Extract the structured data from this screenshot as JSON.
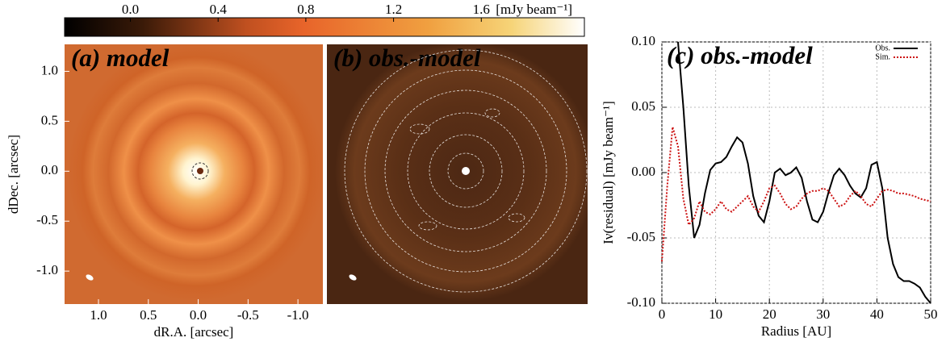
{
  "chart_data": [
    {
      "type": "image",
      "title": "(a) model",
      "xlabel": "dR.A. [arcsec]",
      "ylabel": "dDec. [arcsec]",
      "xlim": [
        1.34,
        -1.25
      ],
      "ylim": [
        -1.33,
        1.27
      ],
      "xticks": [
        {
          "value": 1.0,
          "label": "1.0"
        },
        0.5,
        {
          "value": 0.0,
          "label": "0.0"
        },
        -0.5,
        {
          "value": -1.0,
          "label": "-1.0"
        }
      ],
      "yticks": [
        {
          "value": 1.0,
          "label": "1.0"
        },
        0.5,
        {
          "value": 0.0,
          "label": "0.0"
        },
        -0.5,
        {
          "value": -1.0,
          "label": "-1.0"
        }
      ],
      "colorbar": {
        "lim": [
          -0.3,
          2.07
        ],
        "ticks": [
          {
            "value": 0.0,
            "label": "0.0"
          },
          0.4,
          0.8,
          1.2,
          1.6
        ],
        "label": "[mJy beam⁻¹]"
      }
    },
    {
      "type": "image",
      "title": "(b) obs.-model",
      "xlim": [
        1.34,
        -1.25
      ],
      "ylim": [
        -1.33,
        1.27
      ]
    },
    {
      "type": "line",
      "title": "(c) obs.-model",
      "xlabel": "Radius [AU]",
      "ylabel": "Iν(residual) [mJy beam⁻¹]",
      "x": [
        0,
        1,
        2,
        3,
        4,
        5,
        6,
        7,
        8,
        9,
        10,
        11,
        12,
        13,
        14,
        15,
        16,
        17,
        18,
        19,
        20,
        21,
        22,
        23,
        24,
        25,
        26,
        27,
        28,
        29,
        30,
        31,
        32,
        33,
        34,
        35,
        36,
        37,
        38,
        39,
        40,
        41,
        42,
        43,
        44,
        45,
        46,
        47,
        48,
        49,
        50
      ],
      "xlim": [
        0,
        50
      ],
      "ylim": [
        -0.1,
        0.1
      ],
      "xticks": [
        0,
        10,
        20,
        30,
        40,
        50
      ],
      "yticks": [
        {
          "value": 0.1,
          "label": "0.10"
        },
        0.05,
        {
          "value": 0.0,
          "label": "0.00"
        },
        -0.05,
        {
          "value": -0.1,
          "label": "-0.10"
        }
      ],
      "grid": true,
      "legend": "upper right",
      "series": [
        {
          "name": "Obs.",
          "color": "#000000",
          "style": "solid",
          "values": [
            null,
            null,
            null,
            0.1,
            0.05,
            -0.01,
            -0.05,
            -0.04,
            -0.016,
            0.002,
            0.007,
            0.008,
            0.012,
            0.02,
            0.027,
            0.023,
            0.007,
            -0.018,
            -0.033,
            -0.038,
            -0.022,
            0.0,
            0.003,
            -0.002,
            0.0,
            0.004,
            -0.004,
            -0.022,
            -0.036,
            -0.038,
            -0.03,
            -0.015,
            -0.002,
            0.003,
            -0.002,
            -0.01,
            -0.016,
            -0.019,
            -0.012,
            0.006,
            0.008,
            -0.012,
            -0.05,
            -0.07,
            -0.08,
            -0.083,
            -0.083,
            -0.085,
            -0.088,
            -0.095,
            -0.1
          ]
        },
        {
          "name": "Sim.",
          "color": "#cc1111",
          "style": "dotted",
          "values": [
            -0.068,
            -0.01,
            0.035,
            0.02,
            -0.02,
            -0.04,
            -0.035,
            -0.022,
            -0.03,
            -0.032,
            -0.028,
            -0.022,
            -0.028,
            -0.03,
            -0.026,
            -0.022,
            -0.018,
            -0.026,
            -0.03,
            -0.022,
            -0.012,
            -0.01,
            -0.016,
            -0.024,
            -0.028,
            -0.026,
            -0.02,
            -0.016,
            -0.014,
            -0.014,
            -0.012,
            -0.014,
            -0.02,
            -0.026,
            -0.024,
            -0.018,
            -0.014,
            -0.018,
            -0.024,
            -0.026,
            -0.02,
            -0.014,
            -0.013,
            -0.014,
            -0.016,
            -0.016,
            -0.017,
            -0.018,
            -0.02,
            -0.021,
            -0.022
          ]
        }
      ]
    }
  ]
}
